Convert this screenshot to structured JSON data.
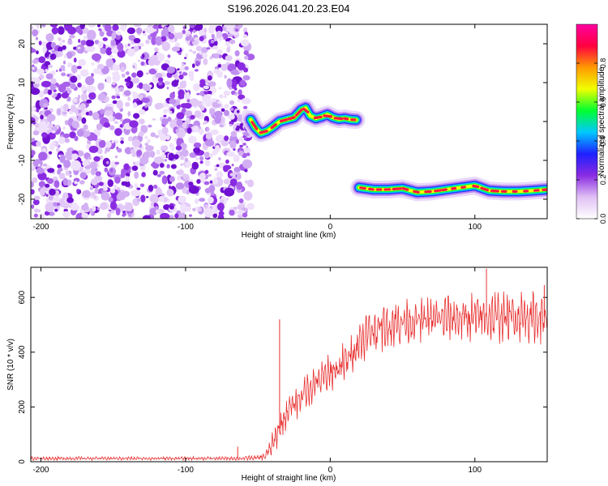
{
  "title": "S196.2026.041.20.23.E04",
  "chart_data": [
    {
      "type": "heatmap",
      "name": "spectrogram",
      "xlabel": "Height of straight line (km)",
      "ylabel": "Frequency (Hz)",
      "xlim": [
        -207,
        150
      ],
      "ylim": [
        -25,
        25
      ],
      "xticks": [
        -200,
        -100,
        0,
        100
      ],
      "xtick_labels": [
        "-200",
        "-100",
        "0",
        "100"
      ],
      "yticks": [
        -20,
        -10,
        0,
        10,
        20
      ],
      "ytick_labels": [
        "-20",
        "-10",
        "0",
        "10",
        "20"
      ],
      "noise_region_x": [
        -207,
        -55
      ],
      "signal_track": {
        "segment_1": {
          "x": [
            -55,
            -52,
            -48,
            -44,
            -40,
            -35,
            -30,
            -25,
            -20,
            -17,
            -14,
            -10,
            -6,
            -2,
            2,
            6,
            10,
            14,
            18
          ],
          "y": [
            0.5,
            -1.5,
            -3.0,
            -2.5,
            -1.5,
            0,
            0.5,
            1.0,
            3.0,
            3.5,
            1.5,
            0.8,
            1.2,
            1.8,
            1.0,
            0.6,
            0.8,
            0.5,
            0.4
          ]
        },
        "segment_2": {
          "x": [
            20,
            30,
            40,
            50,
            60,
            70,
            80,
            90,
            100,
            110,
            120,
            130,
            140,
            150
          ],
          "y": [
            -17.0,
            -17.5,
            -17.5,
            -17.2,
            -18.2,
            -18.0,
            -17.5,
            -17.0,
            -16.5,
            -17.8,
            -18.0,
            -18.0,
            -17.8,
            -17.5
          ]
        }
      },
      "colorbar": {
        "label": "Normalized spectral amplitude",
        "range": [
          0,
          1
        ],
        "ticks": [
          0.0,
          0.2,
          0.4,
          0.6,
          0.8
        ],
        "tick_labels": [
          "0.0",
          "0.2",
          "0.4",
          "0.6",
          "0.8"
        ],
        "colors": [
          "#ffffff",
          "#e0c0f5",
          "#8a2be2",
          "#1e20ff",
          "#00c8ff",
          "#00ff30",
          "#f0ff00",
          "#ff9a00",
          "#ff0040",
          "#ff00a0"
        ]
      }
    },
    {
      "type": "line",
      "name": "snr",
      "xlabel": "Height of straight line (km)",
      "ylabel": "SNR (10 * v/v)",
      "xlim": [
        -207,
        150
      ],
      "ylim": [
        0,
        710
      ],
      "xticks": [
        -200,
        -100,
        0,
        100
      ],
      "xtick_labels": [
        "-200",
        "-100",
        "0",
        "100"
      ],
      "yticks": [
        0,
        200,
        400,
        600
      ],
      "ytick_labels": [
        "0",
        "200",
        "400",
        "600"
      ],
      "color": "#e83030",
      "envelope": {
        "x": [
          -207,
          -60,
          -56,
          -50,
          -45,
          -40,
          -36,
          -30,
          -20,
          -10,
          0,
          10,
          20,
          30,
          40,
          50,
          60,
          70,
          80,
          90,
          100,
          110,
          120,
          130,
          140,
          150
        ],
        "mean": [
          12,
          12,
          14,
          14,
          20,
          60,
          110,
          180,
          240,
          290,
          320,
          360,
          440,
          480,
          500,
          510,
          515,
          520,
          525,
          525,
          525,
          530,
          530,
          530,
          530,
          530
        ],
        "amplitude": [
          6,
          6,
          8,
          8,
          15,
          40,
          50,
          55,
          60,
          60,
          65,
          70,
          80,
          80,
          80,
          75,
          75,
          75,
          80,
          80,
          85,
          85,
          85,
          85,
          85,
          85
        ]
      },
      "spikes": [
        {
          "x": -64,
          "y": 55
        },
        {
          "x": -35,
          "y": 520
        },
        {
          "x": 108,
          "y": 705
        },
        {
          "x": 148,
          "y": 645
        }
      ]
    }
  ]
}
